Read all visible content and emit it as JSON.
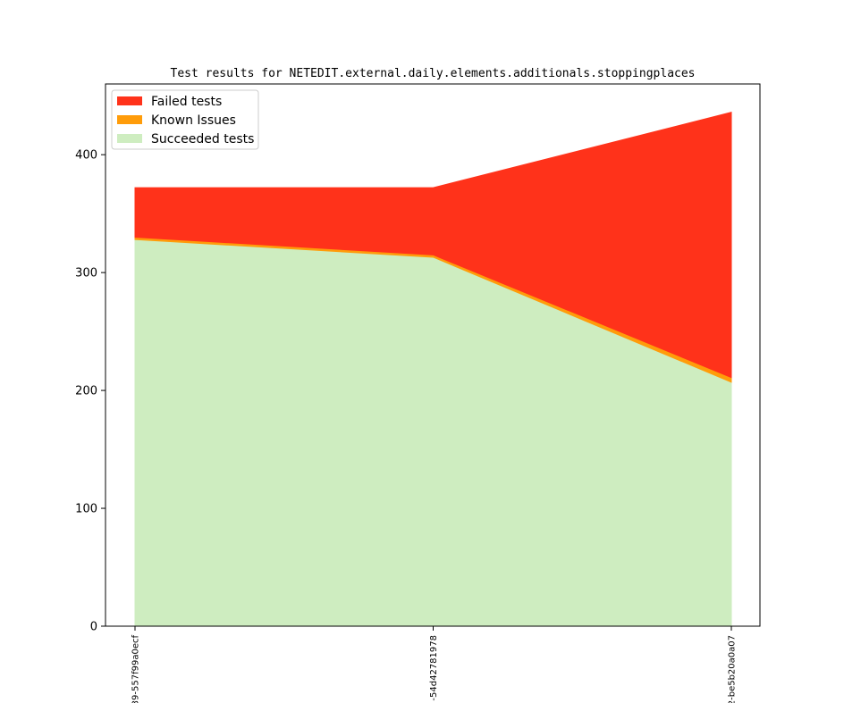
{
  "chart_data": {
    "type": "area",
    "stacked": true,
    "title": "Test results for NETEDIT.external.daily.elements.additionals.stoppingplaces",
    "xlabel": "",
    "ylabel": "",
    "categories": [
      "39-557f99a0ecf",
      "-54d42781978",
      "2-be5b20a0a07"
    ],
    "ylim": [
      0,
      460
    ],
    "yticks": [
      0,
      100,
      200,
      300,
      400
    ],
    "grid": false,
    "legend": "top-left",
    "series": [
      {
        "name": "Succeeded tests",
        "color": "#ceedc0",
        "values": [
          328,
          313,
          207
        ]
      },
      {
        "name": "Known Issues",
        "color": "#ff9c0a",
        "values": [
          2,
          2,
          4
        ]
      },
      {
        "name": "Failed tests",
        "color": "#ff321a",
        "values": [
          42,
          57,
          225
        ]
      }
    ]
  }
}
